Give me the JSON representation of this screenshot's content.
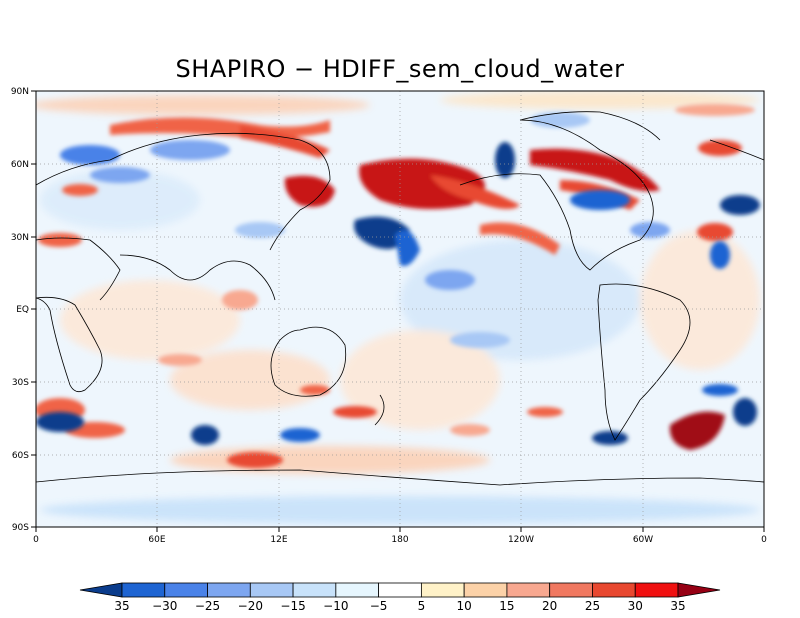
{
  "title": "SHAPIRO − HDIFF_sem_cloud_water",
  "lat_labels": [
    "90N",
    "60N",
    "30N",
    "EQ",
    "30S",
    "60S",
    "90S"
  ],
  "lon_labels": [
    "0",
    "60E",
    "12E",
    "180",
    "120W",
    "60W",
    "0"
  ],
  "colorbar": {
    "labels": [
      "35",
      "−30",
      "−25",
      "−20",
      "−15",
      "−10",
      "−5",
      "5",
      "10",
      "15",
      "20",
      "25",
      "30",
      "35"
    ],
    "colors": [
      "#0a3c8c",
      "#1e64d2",
      "#4a82e8",
      "#7da6f0",
      "#a8c8f5",
      "#c8e2fa",
      "#e6f6fe",
      "#ffffff",
      "#fff2c8",
      "#fcd2a8",
      "#f8a890",
      "#f07860",
      "#e84830",
      "#f01010",
      "#960014"
    ]
  },
  "palette": {
    "strong_pos": "#c81414",
    "pos": "#f06446",
    "weak_pos": "#fcc8b4",
    "strong_neg": "#0a3c8c",
    "neg": "#4a82e8",
    "weak_neg": "#b4d2f5"
  }
}
